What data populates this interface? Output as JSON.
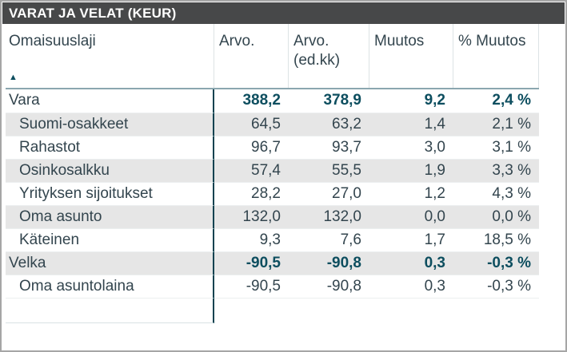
{
  "title": "VARAT JA VELAT (KEUR)",
  "colors": {
    "titlebar_bg": "#474849",
    "title_text": "#ffffff",
    "text": "#33454e",
    "accent_teal_bold_values": "#0d4e5f",
    "column_divider_teal": "#0d4250",
    "shaded_row_bg": "#e6e6e6",
    "header_underline": "#8ba6af",
    "frame_border": "#a6a6a6"
  },
  "table": {
    "sort_icon": "▲",
    "sort_icon_meaning": "sorted-ascending",
    "columns": [
      {
        "label": "Omaisuuslaji",
        "sublabel": ""
      },
      {
        "label": "Arvo.",
        "sublabel": ""
      },
      {
        "label": "Arvo.",
        "sublabel": "(ed.kk)"
      },
      {
        "label": "Muutos",
        "sublabel": ""
      },
      {
        "label": "% Muutos",
        "sublabel": ""
      }
    ],
    "rows": [
      {
        "label": "Vara",
        "arvo": "388,2",
        "arvo_edkk": "378,9",
        "muutos": "9,2",
        "pct_muutos": "2,4 %",
        "total": true,
        "indent": false,
        "shaded": false
      },
      {
        "label": "Suomi-osakkeet",
        "arvo": "64,5",
        "arvo_edkk": "63,2",
        "muutos": "1,4",
        "pct_muutos": "2,1 %",
        "total": false,
        "indent": true,
        "shaded": true
      },
      {
        "label": "Rahastot",
        "arvo": "96,7",
        "arvo_edkk": "93,7",
        "muutos": "3,0",
        "pct_muutos": "3,1 %",
        "total": false,
        "indent": true,
        "shaded": false
      },
      {
        "label": "Osinkosalkku",
        "arvo": "57,4",
        "arvo_edkk": "55,5",
        "muutos": "1,9",
        "pct_muutos": "3,3 %",
        "total": false,
        "indent": true,
        "shaded": true
      },
      {
        "label": "Yrityksen sijoitukset",
        "arvo": "28,2",
        "arvo_edkk": "27,0",
        "muutos": "1,2",
        "pct_muutos": "4,3 %",
        "total": false,
        "indent": true,
        "shaded": false
      },
      {
        "label": "Oma asunto",
        "arvo": "132,0",
        "arvo_edkk": "132,0",
        "muutos": "0,0",
        "pct_muutos": "0,0 %",
        "total": false,
        "indent": true,
        "shaded": true
      },
      {
        "label": "Käteinen",
        "arvo": "9,3",
        "arvo_edkk": "7,6",
        "muutos": "1,7",
        "pct_muutos": "18,5 %",
        "total": false,
        "indent": true,
        "shaded": false
      },
      {
        "label": "Velka",
        "arvo": "-90,5",
        "arvo_edkk": "-90,8",
        "muutos": "0,3",
        "pct_muutos": "-0,3 %",
        "total": true,
        "indent": false,
        "shaded": true
      },
      {
        "label": "Oma asuntolaina",
        "arvo": "-90,5",
        "arvo_edkk": "-90,8",
        "muutos": "0,3",
        "pct_muutos": "-0,3 %",
        "total": false,
        "indent": true,
        "shaded": false
      }
    ]
  },
  "chart_data": {
    "type": "table",
    "title": "VARAT JA VELAT (KEUR)",
    "columns": [
      "Omaisuuslaji",
      "Arvo.",
      "Arvo. (ed.kk)",
      "Muutos",
      "% Muutos"
    ],
    "rows": [
      [
        "Vara",
        388.2,
        378.9,
        9.2,
        "2,4 %"
      ],
      [
        "Suomi-osakkeet",
        64.5,
        63.2,
        1.4,
        "2,1 %"
      ],
      [
        "Rahastot",
        96.7,
        93.7,
        3.0,
        "3,1 %"
      ],
      [
        "Osinkosalkku",
        57.4,
        55.5,
        1.9,
        "3,3 %"
      ],
      [
        "Yrityksen sijoitukset",
        28.2,
        27.0,
        1.2,
        "4,3 %"
      ],
      [
        "Oma asunto",
        132.0,
        132.0,
        0.0,
        "0,0 %"
      ],
      [
        "Käteinen",
        9.3,
        7.6,
        1.7,
        "18,5 %"
      ],
      [
        "Velka",
        -90.5,
        -90.8,
        0.3,
        "-0,3 %"
      ],
      [
        "Oma asuntolaina",
        -90.5,
        -90.8,
        0.3,
        "-0,3 %"
      ]
    ],
    "layout_hints": {
      "total_rows": [
        "Vara",
        "Velka"
      ],
      "sort_column": "Omaisuuslaji",
      "sort_direction": "ascending",
      "number_format": "comma-decimal, one decimal place"
    }
  }
}
